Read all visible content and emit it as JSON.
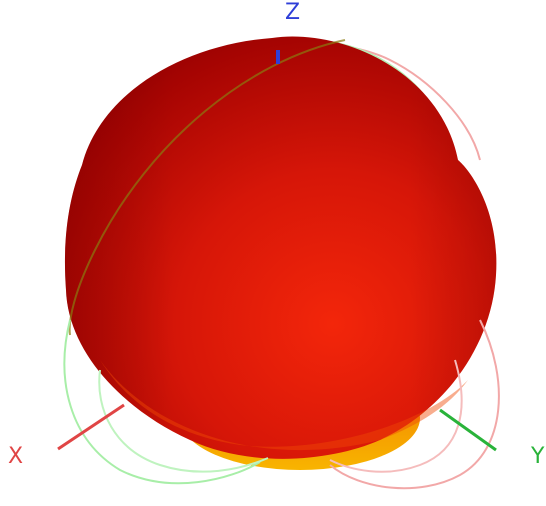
{
  "axes": {
    "z": {
      "label": "Z",
      "color": "#2f3fd8"
    },
    "x": {
      "label": "X",
      "color": "#e04545"
    },
    "y": {
      "label": "Y",
      "color": "#29b33a"
    }
  },
  "pattern": {
    "lobe_dark": "#8f0000",
    "lobe_mid": "#d41508",
    "lobe_light": "#f3260a",
    "lobe_bottom": "#f5a000",
    "cut_red": "#f0a0a0",
    "cut_green": "#a8eea8"
  }
}
